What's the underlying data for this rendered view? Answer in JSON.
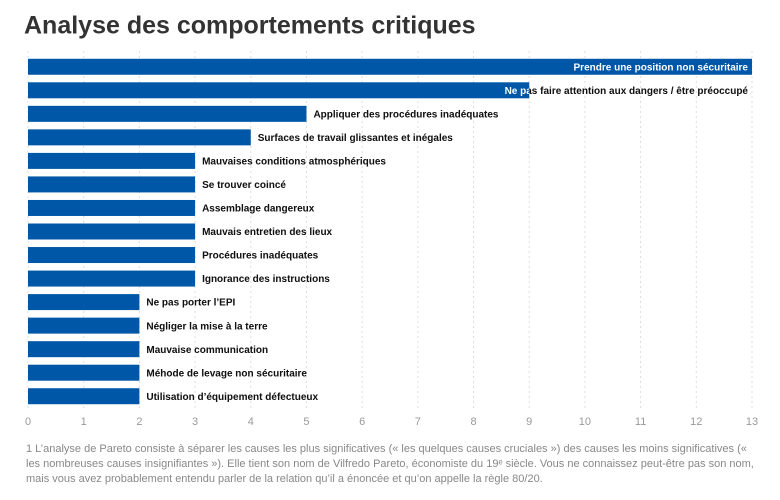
{
  "chart_data": {
    "type": "hbar",
    "title": "Analyse des comportements critiques",
    "categories": [
      "Prendre une position non sécuritaire",
      "Ne pas faire attention aux dangers / être préoccupé",
      "Appliquer des procédures inadéquates",
      "Surfaces de travail glissantes et inégales",
      "Mauvaises conditions atmosphériques",
      "Se trouver coincé",
      "Assemblage dangereux",
      "Mauvais entretien des lieux",
      "Procédures inadéquates",
      "Ignorance des  instructions",
      "Ne pas porter l’EPI",
      "Négliger la mise à la terre",
      "Mauvaise communication",
      "Méhode de levage non sécuritaire",
      "Utilisation d’équipement défectueux"
    ],
    "values": [
      13,
      9,
      5,
      4,
      3,
      3,
      3,
      3,
      3,
      3,
      2,
      2,
      2,
      2,
      2
    ],
    "color": "#0057a8",
    "xlim": [
      0,
      13
    ],
    "xticks": [
      0,
      1,
      2,
      3,
      4,
      5,
      6,
      7,
      8,
      9,
      10,
      11,
      12,
      13
    ],
    "grid": true,
    "footnote": "1  L’analyse de Pareto consiste à séparer les causes les plus significatives (« les quelques causes cruciales ») des causes les moins significatives (« les nombreuses causes insignifiantes »). Elle tient son nom de Vilfredo Pareto, économiste du 19ᵉ siècle. Vous ne connaissez peut-être pas son nom, mais vous avez probablement entendu parler de la relation qu’il a énoncée et qu’on appelle la règle 80/20."
  }
}
